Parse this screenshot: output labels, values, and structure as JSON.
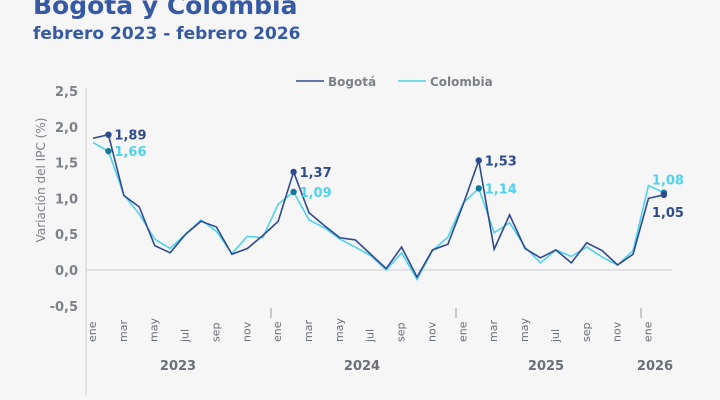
{
  "title": "Bogotá y Colombia",
  "subtitle": "febrero 2023 - febrero 2026",
  "chart_data": {
    "type": "line",
    "ylabel": "Variación del IPC (%)",
    "ylim": [
      -0.5,
      2.5
    ],
    "yticks": [
      "-0,5",
      "0,0",
      "0,5",
      "1,0",
      "1,5",
      "2,0",
      "2,5"
    ],
    "month_ticks": [
      "ene",
      "mar",
      "may",
      "jul",
      "sep",
      "nov",
      "ene",
      "mar",
      "may",
      "jul",
      "sep",
      "nov",
      "ene",
      "mar",
      "may",
      "jul",
      "sep",
      "nov",
      "ene"
    ],
    "years": [
      "2023",
      "2024",
      "2025",
      "2026"
    ],
    "legend": [
      "Bogotá",
      "Colombia"
    ],
    "legend_position": "top-center",
    "x_start": "2023-01",
    "series": [
      {
        "name": "Bogotá",
        "color": "#2f4b8e",
        "values": [
          1.84,
          1.89,
          1.04,
          0.88,
          0.34,
          0.24,
          0.5,
          0.68,
          0.6,
          0.22,
          0.3,
          0.48,
          0.68,
          1.37,
          0.8,
          0.62,
          0.45,
          0.42,
          0.22,
          0.02,
          0.32,
          -0.1,
          0.28,
          0.36,
          0.92,
          1.53,
          0.29,
          0.77,
          0.3,
          0.17,
          0.28,
          0.1,
          0.38,
          0.27,
          0.07,
          0.22,
          1.0,
          1.05
        ]
      },
      {
        "name": "Colombia",
        "color": "#4fd2f0",
        "values": [
          1.78,
          1.66,
          1.05,
          0.78,
          0.43,
          0.3,
          0.5,
          0.7,
          0.54,
          0.23,
          0.47,
          0.45,
          0.92,
          1.09,
          0.7,
          0.59,
          0.43,
          0.32,
          0.2,
          0.0,
          0.24,
          -0.13,
          0.27,
          0.46,
          0.94,
          1.14,
          0.52,
          0.66,
          0.32,
          0.1,
          0.28,
          0.19,
          0.32,
          0.18,
          0.07,
          0.27,
          1.18,
          1.08
        ]
      }
    ],
    "annotations": [
      {
        "series": "Bogotá",
        "index": 1,
        "label": "1,89"
      },
      {
        "series": "Colombia",
        "index": 1,
        "label": "1,66"
      },
      {
        "series": "Bogotá",
        "index": 13,
        "label": "1,37"
      },
      {
        "series": "Colombia",
        "index": 13,
        "label": "1,09"
      },
      {
        "series": "Bogotá",
        "index": 25,
        "label": "1,53"
      },
      {
        "series": "Colombia",
        "index": 25,
        "label": "1,14"
      },
      {
        "series": "Colombia",
        "index": 37,
        "label": "1,08"
      },
      {
        "series": "Bogotá",
        "index": 37,
        "label": "1,05"
      }
    ]
  }
}
